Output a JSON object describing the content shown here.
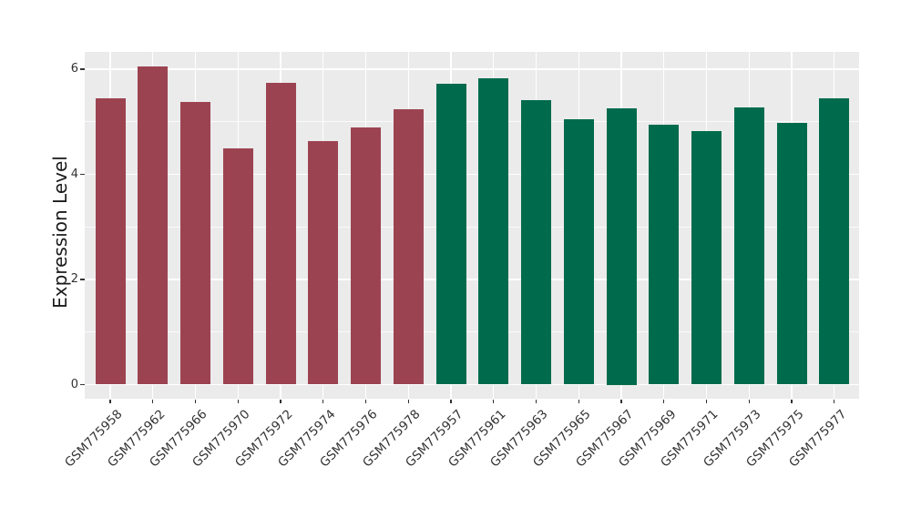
{
  "chart_data": {
    "type": "bar",
    "title": "",
    "xlabel": "",
    "ylabel": "Expression Level",
    "ylim": [
      0,
      6.33
    ],
    "yticks": [
      0,
      2,
      4,
      6
    ],
    "yminorticks": [
      1,
      3,
      5
    ],
    "grid": "on",
    "legend_position": "none",
    "categories": [
      "GSM775958",
      "GSM775962",
      "GSM775966",
      "GSM775970",
      "GSM775972",
      "GSM775974",
      "GSM775976",
      "GSM775978",
      "GSM775957",
      "GSM775961",
      "GSM775963",
      "GSM775965",
      "GSM775967",
      "GSM775969",
      "GSM775971",
      "GSM775973",
      "GSM775975",
      "GSM775977"
    ],
    "values": [
      5.45,
      6.05,
      5.37,
      4.49,
      5.74,
      4.64,
      4.89,
      5.23,
      5.73,
      5.83,
      5.41,
      5.05,
      5.25,
      4.95,
      4.82,
      5.28,
      4.98,
      5.45
    ],
    "bar_colors": [
      "#9C4351",
      "#9C4351",
      "#9C4351",
      "#9C4351",
      "#9C4351",
      "#9C4351",
      "#9C4351",
      "#9C4351",
      "#006B4C",
      "#006B4C",
      "#006B4C",
      "#006B4C",
      "#006B4C",
      "#006B4C",
      "#006B4C",
      "#006B4C",
      "#006B4C",
      "#006B4C"
    ]
  },
  "style": {
    "panel_background": "#EBEBEB",
    "grid_color": "#FFFFFF",
    "bar_color_left_group": "#9C4351",
    "bar_color_right_group": "#006B4C",
    "axis_text_color": "#333333",
    "axis_title_color": "#1A1A1A",
    "figure_background": "#FFFFFF"
  }
}
